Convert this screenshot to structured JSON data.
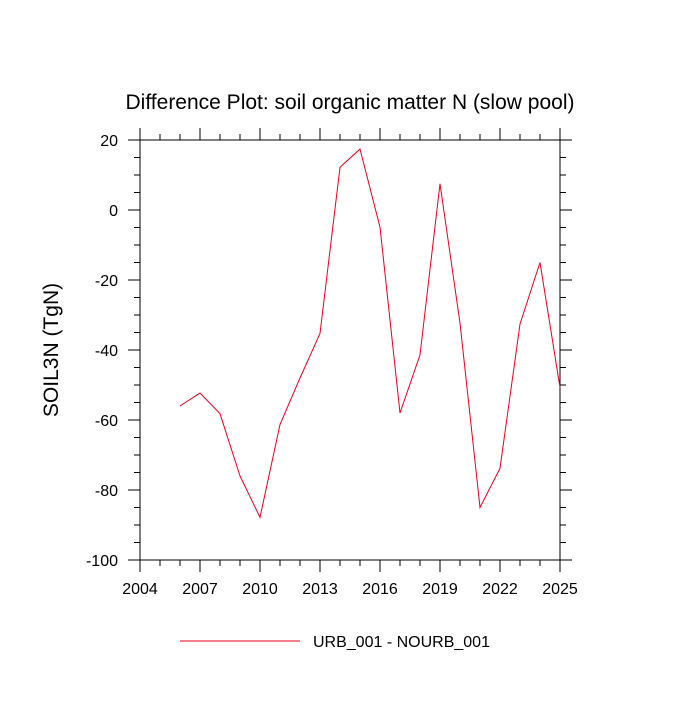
{
  "chart_data": {
    "type": "line",
    "title": "Difference Plot: soil organic matter N (slow pool)",
    "ylabel": "SOIL3N  (TgN)",
    "xlabel": "",
    "xlim": [
      2004,
      2025
    ],
    "ylim": [
      -100,
      20
    ],
    "x_ticks": [
      2004,
      2007,
      2010,
      2013,
      2016,
      2019,
      2022,
      2025
    ],
    "y_ticks": [
      -100,
      -80,
      -60,
      -40,
      -20,
      0,
      20
    ],
    "x_tick_labels": [
      "2004",
      "2007",
      "2010",
      "2013",
      "2016",
      "2019",
      "2022",
      "2025"
    ],
    "y_tick_labels": [
      "-100",
      "-80",
      "-60",
      "-40",
      "-20",
      "0",
      "20"
    ],
    "grid": false,
    "legend_position": "bottom-center",
    "series": [
      {
        "name": "URB_001 - NOURB_001",
        "color": "#e8001c",
        "x": [
          2006,
          2007,
          2008,
          2009,
          2010,
          2011,
          2012,
          2013,
          2014,
          2015,
          2016,
          2017,
          2018,
          2019,
          2020,
          2021,
          2022,
          2023,
          2024,
          2025
        ],
        "y": [
          -56,
          -52.3,
          -58.2,
          -76,
          -87.8,
          -61.3,
          -48,
          -35.3,
          12.2,
          17.4,
          -4.9,
          -58,
          -41.4,
          7.5,
          -32.3,
          -85,
          -73.8,
          -32.6,
          -15,
          -50.7
        ]
      }
    ]
  }
}
